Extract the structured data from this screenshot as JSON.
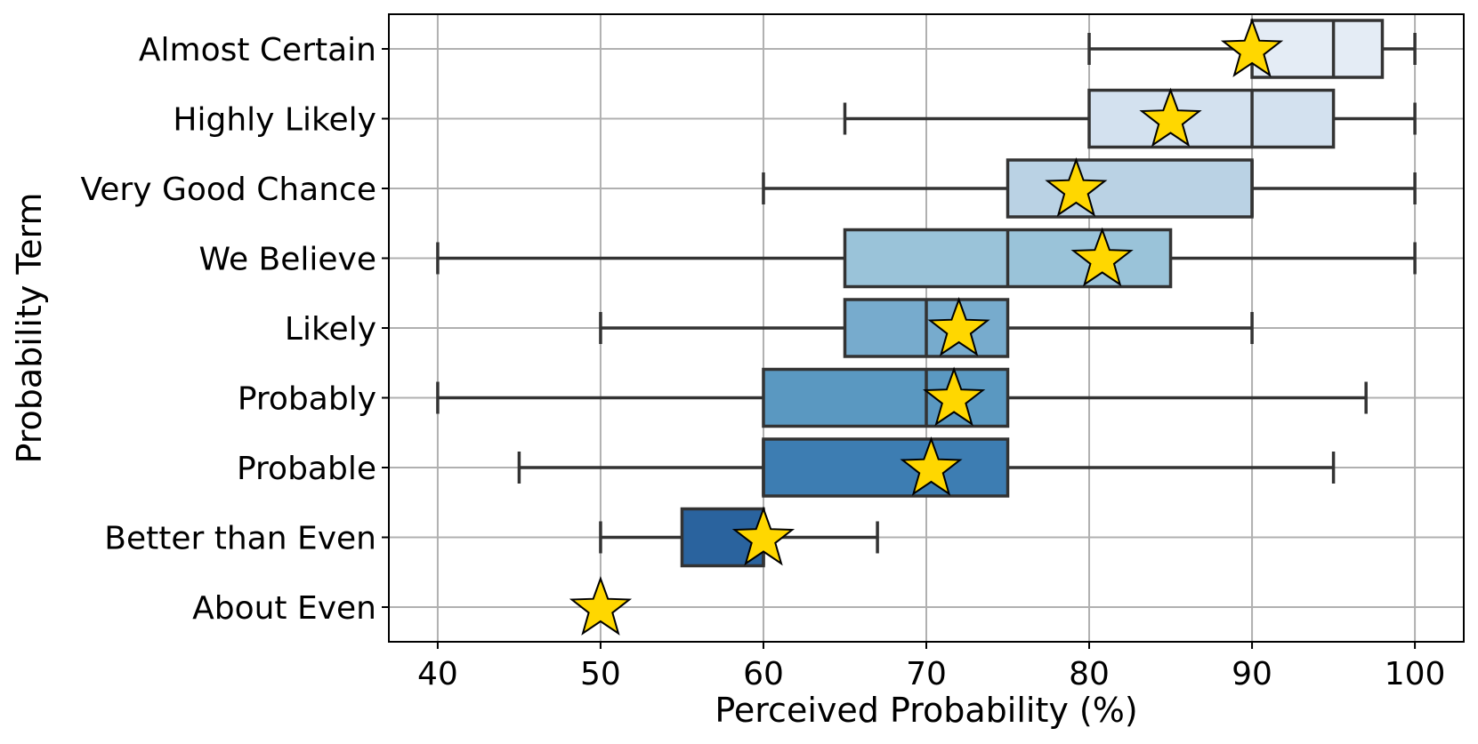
{
  "chart_data": {
    "type": "box",
    "xlabel": "Perceived Probability (%)",
    "ylabel": "Probability Term",
    "xlim": [
      37,
      103
    ],
    "xticks": [
      40,
      50,
      60,
      70,
      80,
      90,
      100
    ],
    "grid": true,
    "categories": [
      "Almost Certain",
      "Highly Likely",
      "Very Good Chance",
      "We Believe",
      "Likely",
      "Probably",
      "Probable",
      "Better than Even",
      "About Even"
    ],
    "boxes": [
      {
        "whisker_low": 80,
        "q1": 90,
        "median": 95,
        "q3": 98,
        "whisker_high": 100,
        "mean": 90,
        "color": "#e4ecf5"
      },
      {
        "whisker_low": 65,
        "q1": 80,
        "median": 90,
        "q3": 95,
        "whisker_high": 100,
        "mean": 85,
        "color": "#d3e1ef"
      },
      {
        "whisker_low": 60,
        "q1": 75,
        "median": 90,
        "q3": 90,
        "whisker_high": 100,
        "mean": 79.2,
        "color": "#bad2e4"
      },
      {
        "whisker_low": 40,
        "q1": 65,
        "median": 75,
        "q3": 85,
        "whisker_high": 100,
        "mean": 80.8,
        "color": "#9ac3d9"
      },
      {
        "whisker_low": 50,
        "q1": 65,
        "median": 70,
        "q3": 75,
        "whisker_high": 90,
        "mean": 72,
        "color": "#77abcd"
      },
      {
        "whisker_low": 40,
        "q1": 60,
        "median": 70,
        "q3": 75,
        "whisker_high": 97,
        "mean": 71.7,
        "color": "#5a98c1"
      },
      {
        "whisker_low": 45,
        "q1": 60,
        "median": 60,
        "q3": 75,
        "whisker_high": 95,
        "mean": 70.3,
        "color": "#3d7db2"
      },
      {
        "whisker_low": 50,
        "q1": 55,
        "median": 60,
        "q3": 60,
        "whisker_high": 67,
        "mean": 60,
        "color": "#2a639e"
      },
      {
        "whisker_low": 50,
        "q1": 50,
        "median": 50,
        "q3": 50,
        "whisker_high": 50,
        "mean": 50,
        "color": "#1f4e8c"
      }
    ],
    "mean_marker": {
      "shape": "star",
      "color": "#ffd700"
    }
  }
}
